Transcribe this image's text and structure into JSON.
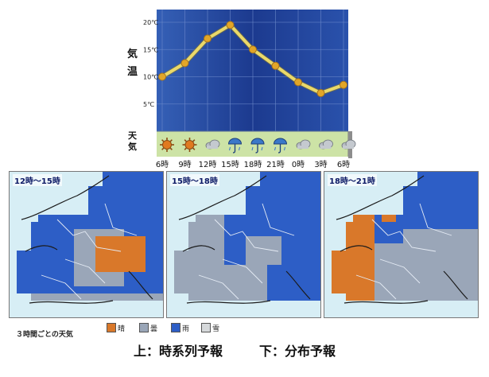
{
  "chart_data": {
    "type": "line",
    "title": "",
    "ylabel": "気温",
    "x": [
      "6時",
      "9時",
      "12時",
      "15時",
      "18時",
      "21時",
      "0時",
      "3時",
      "6時"
    ],
    "series": [
      {
        "name": "",
        "values": [
          10,
          12.5,
          17,
          19.5,
          15,
          12,
          9,
          7,
          8.5
        ]
      }
    ],
    "y_ticks": [
      "5℃",
      "10℃",
      "15℃",
      "20℃"
    ],
    "ylim": [
      0,
      20
    ],
    "grid": true,
    "weather_row_label": "天気",
    "weather_icons": [
      "sun-icon",
      "sun-icon",
      "cloud-icon",
      "rain-umbrella-icon",
      "rain-umbrella-icon",
      "rain-umbrella-icon",
      "cloud-icon",
      "cloud-icon",
      "cloud-icon"
    ],
    "colors": {
      "plot_background_top": "#2850a8",
      "plot_background_bottom": "#1f3f94",
      "line": "#ead96a",
      "marker": "#e2a628",
      "weather_row": "#cde3a6"
    }
  },
  "maps": [
    {
      "label": "12時～15時"
    },
    {
      "label": "15時～18時"
    },
    {
      "label": "18時～21時"
    }
  ],
  "legend": {
    "caption": "３時間ごとの天気",
    "items": [
      {
        "label": "晴",
        "color": "#d9782a"
      },
      {
        "label": "曇",
        "color": "#9aa6b8"
      },
      {
        "label": "雨",
        "color": "#2d5ec6"
      },
      {
        "label": "雪",
        "color": "#d6d9db"
      }
    ]
  },
  "captions": {
    "top": "上：時系列予報",
    "bottom": "下：分布予報"
  }
}
